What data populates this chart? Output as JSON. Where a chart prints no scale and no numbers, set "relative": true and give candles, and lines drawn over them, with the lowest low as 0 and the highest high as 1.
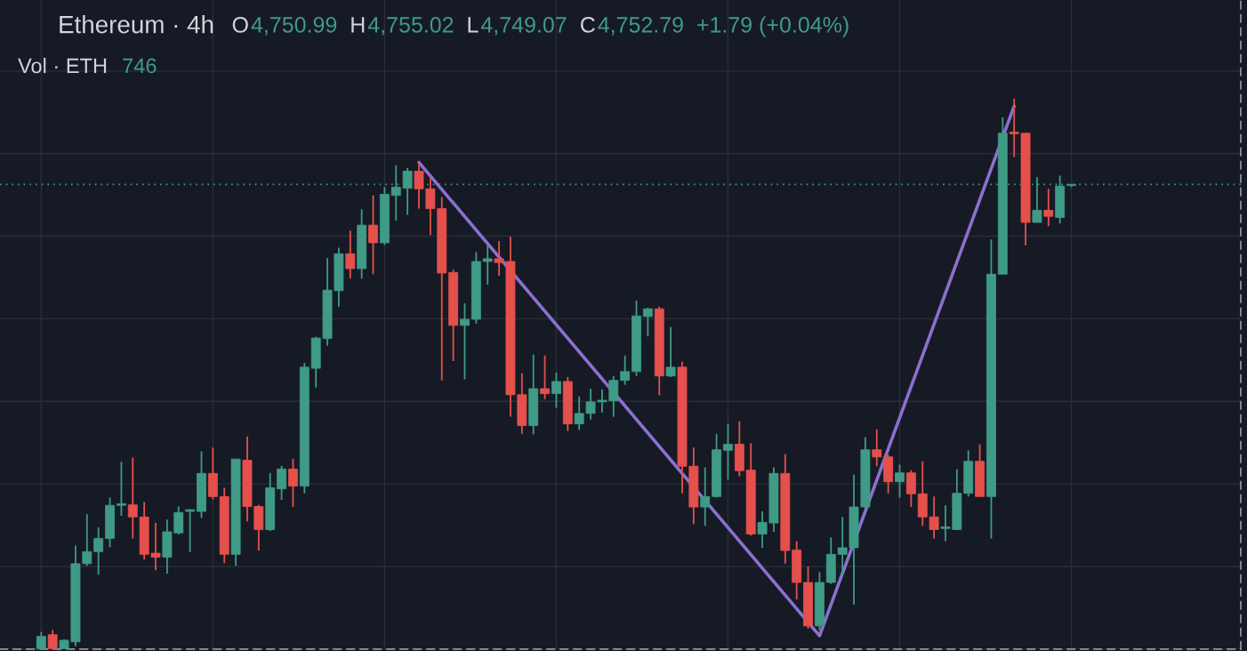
{
  "chart_data": {
    "type": "candlestick",
    "title": "Ethereum · 4h",
    "relative": true,
    "categories": [
      null,
      null,
      null,
      null,
      null,
      null,
      null,
      null,
      null,
      null,
      null,
      null,
      null,
      null,
      null,
      null,
      null,
      null,
      null,
      null,
      null,
      null,
      null,
      null,
      null,
      null,
      null,
      null,
      null,
      null,
      null,
      null,
      null,
      null,
      null,
      null,
      null,
      null,
      null,
      null,
      null,
      null,
      null,
      null,
      null,
      null,
      null,
      null,
      null,
      null,
      null,
      null,
      null,
      null,
      null,
      null,
      null,
      null,
      null,
      null,
      null,
      null,
      null,
      null,
      null,
      null,
      null,
      null,
      null,
      null,
      null,
      null,
      null,
      null,
      null,
      null,
      null,
      null,
      null,
      null,
      null,
      null,
      null,
      null,
      null,
      null,
      null,
      null,
      null,
      null,
      null
    ],
    "ohlc": [
      [
        0,
        0.031,
        0,
        0.023
      ],
      [
        0.026,
        0.035,
        0,
        0
      ],
      [
        0,
        0.018,
        0,
        0.016
      ],
      [
        0.013,
        0.188,
        0.005,
        0.155
      ],
      [
        0.155,
        0.245,
        0.151,
        0.177
      ],
      [
        0.177,
        0.221,
        0.135,
        0.201
      ],
      [
        0.201,
        0.275,
        0.185,
        0.261
      ],
      [
        0.261,
        0.34,
        0.242,
        0.264
      ],
      [
        0.262,
        0.348,
        0.201,
        0.24
      ],
      [
        0.24,
        0.267,
        0.163,
        0.172
      ],
      [
        0.174,
        0.229,
        0.143,
        0.167
      ],
      [
        0.167,
        0.235,
        0.137,
        0.213
      ],
      [
        0.211,
        0.259,
        0.208,
        0.248
      ],
      [
        0.25,
        0.254,
        0.176,
        0.253
      ],
      [
        0.25,
        0.359,
        0.238,
        0.319
      ],
      [
        0.319,
        0.366,
        0.272,
        0.277
      ],
      [
        0.277,
        0.293,
        0.156,
        0.172
      ],
      [
        0.172,
        0.346,
        0.151,
        0.345
      ],
      [
        0.343,
        0.386,
        0.232,
        0.259
      ],
      [
        0.259,
        0.262,
        0.179,
        0.217
      ],
      [
        0.217,
        0.32,
        0.214,
        0.293
      ],
      [
        0.291,
        0.333,
        0.271,
        0.327
      ],
      [
        0.327,
        0.346,
        0.258,
        0.296
      ],
      [
        0.296,
        0.52,
        0.283,
        0.512
      ],
      [
        0.51,
        0.567,
        0.475,
        0.565
      ],
      [
        0.564,
        0.71,
        0.551,
        0.652
      ],
      [
        0.651,
        0.729,
        0.622,
        0.718
      ],
      [
        0.718,
        0.76,
        0.673,
        0.691
      ],
      [
        0.691,
        0.799,
        0.673,
        0.77
      ],
      [
        0.77,
        0.824,
        0.681,
        0.738
      ],
      [
        0.738,
        0.839,
        0.734,
        0.826
      ],
      [
        0.824,
        0.879,
        0.778,
        0.839
      ],
      [
        0.837,
        0.874,
        0.789,
        0.868
      ],
      [
        0.868,
        0.884,
        0.8,
        0.836
      ],
      [
        0.836,
        0.857,
        0.752,
        0.8
      ],
      [
        0.8,
        0.821,
        0.488,
        0.683
      ],
      [
        0.684,
        0.689,
        0.523,
        0.588
      ],
      [
        0.588,
        0.628,
        0.49,
        0.599
      ],
      [
        0.599,
        0.721,
        0.591,
        0.704
      ],
      [
        0.704,
        0.734,
        0.662,
        0.709
      ],
      [
        0.709,
        0.741,
        0.678,
        0.702
      ],
      [
        0.704,
        0.749,
        0.422,
        0.462
      ],
      [
        0.462,
        0.501,
        0.391,
        0.406
      ],
      [
        0.406,
        0.535,
        0.39,
        0.473
      ],
      [
        0.473,
        0.533,
        0.454,
        0.464
      ],
      [
        0.464,
        0.502,
        0.438,
        0.486
      ],
      [
        0.486,
        0.494,
        0.396,
        0.409
      ],
      [
        0.409,
        0.459,
        0.398,
        0.428
      ],
      [
        0.428,
        0.473,
        0.417,
        0.449
      ],
      [
        0.449,
        0.472,
        0.43,
        0.452
      ],
      [
        0.451,
        0.496,
        0.422,
        0.488
      ],
      [
        0.488,
        0.533,
        0.48,
        0.504
      ],
      [
        0.504,
        0.633,
        0.496,
        0.605
      ],
      [
        0.604,
        0.62,
        0.568,
        0.618
      ],
      [
        0.618,
        0.622,
        0.461,
        0.496
      ],
      [
        0.496,
        0.585,
        0.494,
        0.512
      ],
      [
        0.512,
        0.522,
        0.283,
        0.332
      ],
      [
        0.332,
        0.366,
        0.227,
        0.258
      ],
      [
        0.258,
        0.33,
        0.224,
        0.277
      ],
      [
        0.277,
        0.391,
        0.275,
        0.362
      ],
      [
        0.361,
        0.409,
        0.308,
        0.372
      ],
      [
        0.372,
        0.414,
        0.314,
        0.324
      ],
      [
        0.325,
        0.374,
        0.206,
        0.209
      ],
      [
        0.209,
        0.25,
        0.184,
        0.23
      ],
      [
        0.229,
        0.33,
        0.213,
        0.319
      ],
      [
        0.319,
        0.354,
        0.155,
        0.179
      ],
      [
        0.18,
        0.196,
        0.09,
        0.121
      ],
      [
        0.121,
        0.15,
        0.037,
        0.042
      ],
      [
        0.042,
        0.14,
        0.034,
        0.121
      ],
      [
        0.121,
        0.203,
        0.118,
        0.172
      ],
      [
        0.172,
        0.24,
        0.132,
        0.184
      ],
      [
        0.184,
        0.317,
        0.081,
        0.258
      ],
      [
        0.258,
        0.385,
        0.254,
        0.362
      ],
      [
        0.362,
        0.399,
        0.332,
        0.349
      ],
      [
        0.349,
        0.353,
        0.283,
        0.304
      ],
      [
        0.304,
        0.335,
        0.275,
        0.32
      ],
      [
        0.32,
        0.325,
        0.258,
        0.282
      ],
      [
        0.282,
        0.341,
        0.224,
        0.24
      ],
      [
        0.24,
        0.277,
        0.201,
        0.217
      ],
      [
        0.219,
        0.261,
        0.196,
        0.222
      ],
      [
        0.217,
        0.327,
        0.216,
        0.283
      ],
      [
        0.283,
        0.361,
        0.277,
        0.341
      ],
      [
        0.341,
        0.372,
        0.277,
        0.277
      ],
      [
        0.277,
        0.744,
        0.201,
        0.681
      ],
      [
        0.681,
        0.966,
        0.681,
        0.937
      ],
      [
        0.939,
        1.0,
        0.894,
        0.936
      ],
      [
        0.937,
        0.937,
        0.733,
        0.775
      ],
      [
        0.775,
        0.857,
        0.775,
        0.797
      ],
      [
        0.797,
        0.836,
        0.768,
        0.786
      ],
      [
        0.784,
        0.86,
        0.773,
        0.841
      ],
      [
        0.842,
        0.845,
        0.839,
        0.844
      ]
    ],
    "series": [
      {
        "type": "line",
        "color": "#8d6fd1",
        "values": [
          null,
          null,
          null,
          null,
          null,
          null,
          null,
          null,
          null,
          null,
          null,
          null,
          null,
          null,
          null,
          null,
          null,
          null,
          null,
          null,
          null,
          null,
          null,
          null,
          null,
          null,
          null,
          null,
          null,
          null,
          null,
          null,
          null,
          0.884,
          null,
          null,
          null,
          null,
          null,
          null,
          null,
          null,
          null,
          null,
          null,
          null,
          null,
          null,
          null,
          null,
          null,
          null,
          null,
          null,
          null,
          null,
          null,
          null,
          null,
          null,
          null,
          null,
          null,
          null,
          null,
          null,
          null,
          null,
          0.024,
          null,
          null,
          null,
          null,
          null,
          null,
          null,
          null,
          null,
          null,
          null,
          null,
          null,
          null,
          null,
          null,
          0.986,
          null,
          null,
          null,
          null,
          null
        ]
      }
    ],
    "ref_lines": [
      {
        "axis": "y",
        "value": 0.844,
        "color": "#3f9b86",
        "line_style": "dotted"
      }
    ],
    "annotations": [
      "O",
      "4,750.99",
      "H",
      "4,755.02",
      "L",
      "4,749.07",
      "C",
      "4,752.79",
      "+1.79 (+0.04%)",
      "Vol · ETH",
      "746"
    ],
    "grid": true,
    "tick_labels": false
  }
}
